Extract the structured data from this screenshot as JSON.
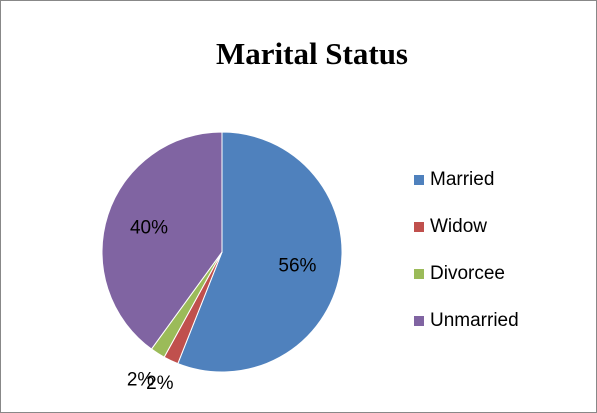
{
  "chart_data": {
    "type": "pie",
    "title": "Marital Status",
    "categories": [
      "Married",
      "Widow",
      "Divorcee",
      "Unmarried"
    ],
    "values": [
      56,
      2,
      2,
      40
    ],
    "value_labels": [
      "56%",
      "2%",
      "2%",
      "40%"
    ],
    "colors": [
      "#4f81bd",
      "#c0504d",
      "#9bbb59",
      "#8064a2"
    ],
    "legend": "right"
  }
}
